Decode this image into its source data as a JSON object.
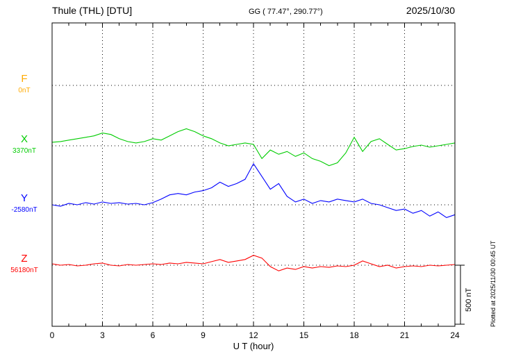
{
  "header": {
    "title": "Thule (THL)  [DTU]",
    "coords": "GG ( 77.47°, 290.77°)",
    "date": "2025/10/30"
  },
  "side_note": "Plotted at 2025/11/30 00:45 UT",
  "scale_bar": {
    "label": "500 nT",
    "nT": 500
  },
  "chart_data": {
    "type": "line",
    "title": "Thule (THL) [DTU] magnetogram 2025/10/30",
    "xlabel": "U T (hour)",
    "x_range": [
      0,
      24
    ],
    "x_ticks": [
      0,
      3,
      6,
      9,
      12,
      15,
      18,
      21,
      24
    ],
    "x_step_hours": 0.5,
    "grid": "dotted vertical lines every 3 h, dotted horizontal line at each component baseline",
    "values_are": "deviation in nT from each component baseline, sampled every 0.5 h from 0 to 24 UT",
    "series": [
      {
        "name": "F",
        "color": "#ffaa00",
        "baseline_label": "0nT",
        "baseline_nT": 0,
        "values": []
      },
      {
        "name": "X",
        "color": "#00cc00",
        "baseline_label": "3370nT",
        "baseline_nT": 3370,
        "values": [
          30,
          36,
          48,
          60,
          72,
          84,
          108,
          96,
          60,
          36,
          24,
          36,
          60,
          48,
          84,
          120,
          144,
          120,
          84,
          60,
          24,
          0,
          12,
          24,
          12,
          -108,
          -36,
          -72,
          -48,
          -90,
          -60,
          -108,
          -132,
          -168,
          -144,
          -60,
          72,
          -48,
          36,
          60,
          12,
          -36,
          -24,
          -6,
          6,
          -12,
          0,
          12,
          24
        ]
      },
      {
        "name": "Y",
        "color": "#0000ff",
        "baseline_label": "-2580nT",
        "baseline_nT": -2580,
        "values": [
          0,
          -12,
          12,
          0,
          18,
          6,
          24,
          12,
          18,
          6,
          12,
          0,
          18,
          48,
          84,
          96,
          84,
          108,
          120,
          144,
          192,
          156,
          180,
          216,
          348,
          240,
          132,
          180,
          72,
          24,
          48,
          12,
          36,
          24,
          48,
          36,
          24,
          48,
          12,
          0,
          -24,
          -48,
          -36,
          -72,
          -48,
          -96,
          -60,
          -108,
          -84
        ]
      },
      {
        "name": "Z",
        "color": "#ff0000",
        "baseline_label": "56180nT",
        "baseline_nT": 56180,
        "values": [
          12,
          0,
          6,
          -6,
          0,
          12,
          18,
          0,
          -6,
          6,
          0,
          6,
          12,
          6,
          18,
          12,
          24,
          18,
          12,
          30,
          48,
          24,
          36,
          48,
          84,
          60,
          -12,
          -48,
          -24,
          -36,
          -12,
          -24,
          -12,
          -18,
          -6,
          -12,
          0,
          36,
          12,
          -12,
          0,
          -24,
          -12,
          -6,
          -12,
          0,
          -6,
          0,
          6
        ]
      }
    ]
  }
}
